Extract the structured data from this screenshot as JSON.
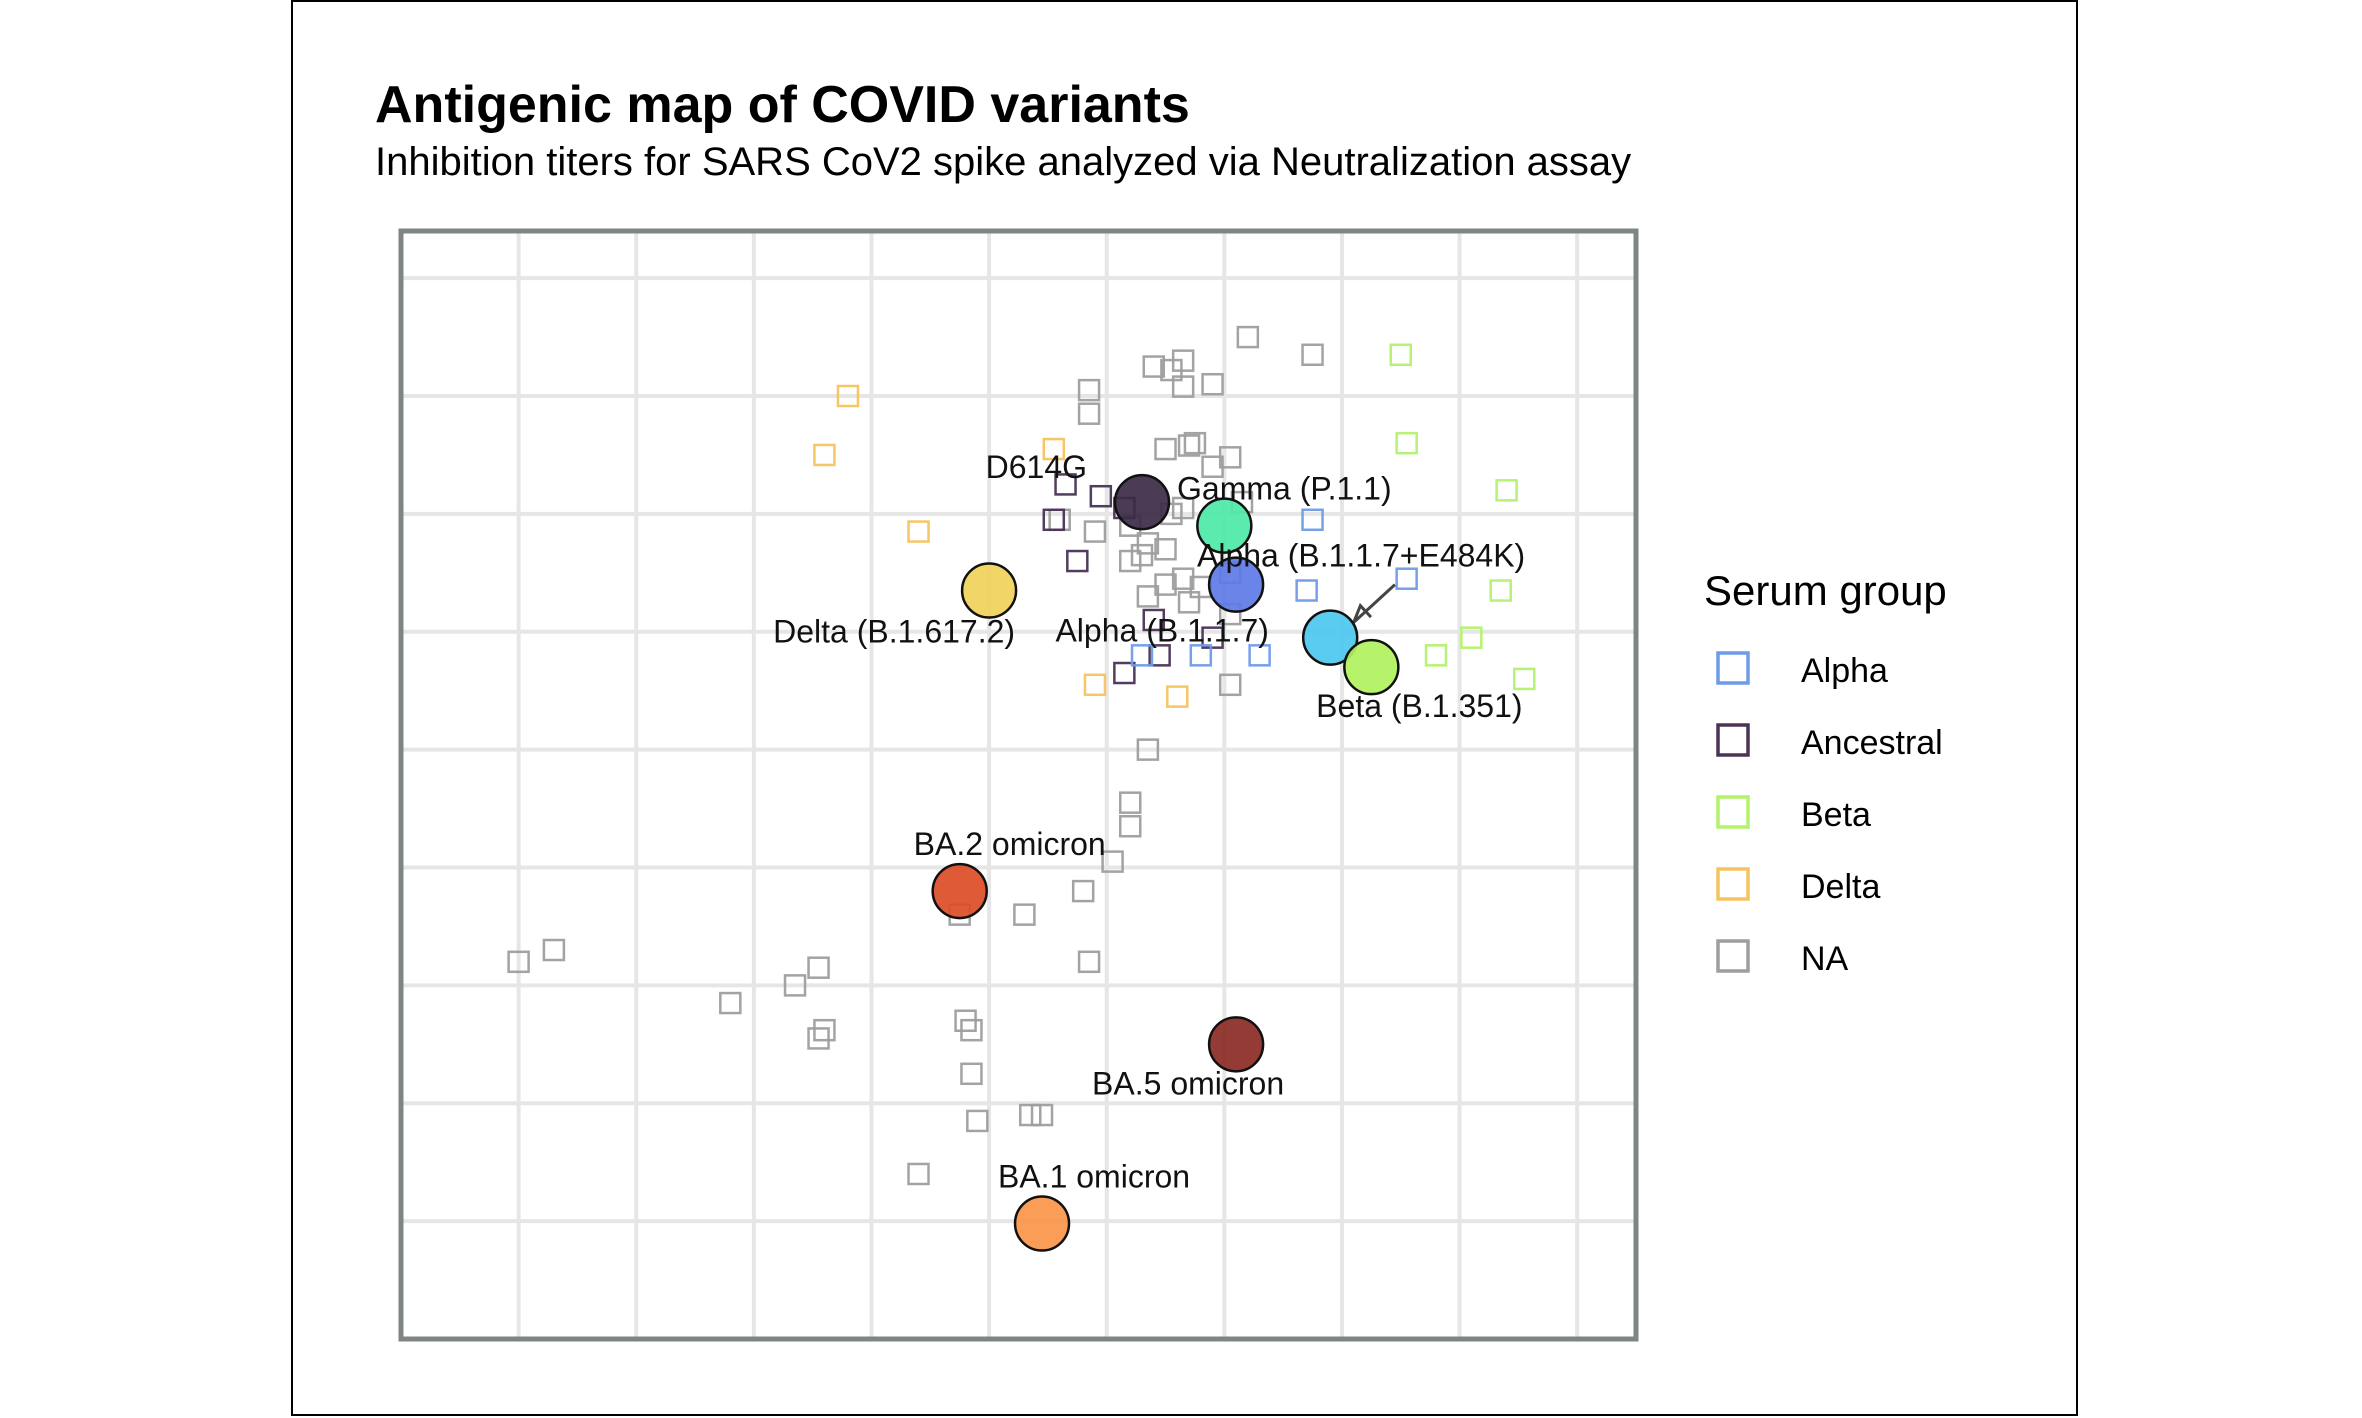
{
  "chart_data": {
    "type": "scatter",
    "title": "Antigenic map of COVID variants",
    "subtitle": "Inhibition titers for SARS CoV2 spike analyzed via Neutralization assay",
    "xlim": [
      0,
      10.5
    ],
    "ylim": [
      0,
      9.4
    ],
    "grid": true,
    "legend": {
      "title": "Serum group",
      "position": "right",
      "entries": [
        {
          "name": "Alpha",
          "color": "#6f9be8"
        },
        {
          "name": "Ancestral",
          "color": "#4a3356"
        },
        {
          "name": "Beta",
          "color": "#b3f26a"
        },
        {
          "name": "Delta",
          "color": "#f5c35f"
        },
        {
          "name": "NA",
          "color": "#9e9e9e"
        }
      ]
    },
    "antigens": [
      {
        "name": "D614G",
        "x": 6.3,
        "y": 7.1,
        "color": "#3c2a47",
        "label_dx": -55,
        "label_dy": -24,
        "anchor": "end"
      },
      {
        "name": "Gamma (P.1.1)",
        "x": 7.0,
        "y": 6.9,
        "color": "#4ee9a7",
        "label_dx": 60,
        "label_dy": -26,
        "anchor": "middle"
      },
      {
        "name": "Alpha (B.1.1.7+E484K)",
        "x": 7.1,
        "y": 6.4,
        "color": "#5e79e6",
        "label_dx": 125,
        "label_dy": -18,
        "anchor": "middle"
      },
      {
        "name": "Delta (B.1.617.2)",
        "x": 5.0,
        "y": 6.35,
        "color": "#f0d35a",
        "label_dx": -95,
        "label_dy": 52,
        "anchor": "middle"
      },
      {
        "name": "Alpha (B.1.1.7)",
        "x": 7.9,
        "y": 5.95,
        "color": "#4cc8ef",
        "label_dx": -168,
        "label_dy": 4,
        "anchor": "middle"
      },
      {
        "name": "Beta (B.1.351)",
        "x": 8.25,
        "y": 5.7,
        "color": "#b1f25d",
        "label_dx": 48,
        "label_dy": 50,
        "anchor": "middle"
      },
      {
        "name": "BA.2 omicron",
        "x": 4.75,
        "y": 3.8,
        "color": "#dc4d27",
        "label_dx": 50,
        "label_dy": -36,
        "anchor": "middle"
      },
      {
        "name": "BA.5 omicron",
        "x": 7.1,
        "y": 2.5,
        "color": "#8b2a24",
        "label_dx": -48,
        "label_dy": 50,
        "anchor": "middle"
      },
      {
        "name": "BA.1 omicron",
        "x": 5.45,
        "y": 0.98,
        "color": "#fa9548",
        "label_dx": 52,
        "label_dy": -36,
        "anchor": "middle"
      }
    ],
    "arrow": {
      "from_x": 8.45,
      "from_y": 6.4,
      "to_x": 8.1,
      "to_y": 6.08
    },
    "sera": [
      {
        "group": "NA",
        "x": 7.2,
        "y": 8.5
      },
      {
        "group": "NA",
        "x": 7.75,
        "y": 8.35
      },
      {
        "group": "NA",
        "x": 6.4,
        "y": 8.25
      },
      {
        "group": "NA",
        "x": 6.65,
        "y": 8.3
      },
      {
        "group": "NA",
        "x": 6.55,
        "y": 8.22
      },
      {
        "group": "NA",
        "x": 6.9,
        "y": 8.1
      },
      {
        "group": "NA",
        "x": 6.65,
        "y": 8.08
      },
      {
        "group": "NA",
        "x": 5.85,
        "y": 8.05
      },
      {
        "group": "NA",
        "x": 5.85,
        "y": 7.85
      },
      {
        "group": "NA",
        "x": 6.5,
        "y": 7.55
      },
      {
        "group": "NA",
        "x": 6.7,
        "y": 7.58
      },
      {
        "group": "NA",
        "x": 6.75,
        "y": 7.6
      },
      {
        "group": "NA",
        "x": 7.05,
        "y": 7.48
      },
      {
        "group": "NA",
        "x": 6.9,
        "y": 7.4
      },
      {
        "group": "NA",
        "x": 7.15,
        "y": 7.1
      },
      {
        "group": "NA",
        "x": 6.55,
        "y": 7.0
      },
      {
        "group": "NA",
        "x": 6.65,
        "y": 7.05
      },
      {
        "group": "NA",
        "x": 6.2,
        "y": 6.9
      },
      {
        "group": "NA",
        "x": 5.6,
        "y": 6.95
      },
      {
        "group": "NA",
        "x": 5.9,
        "y": 6.85
      },
      {
        "group": "NA",
        "x": 6.35,
        "y": 6.75
      },
      {
        "group": "NA",
        "x": 6.5,
        "y": 6.7
      },
      {
        "group": "NA",
        "x": 6.2,
        "y": 6.6
      },
      {
        "group": "NA",
        "x": 6.3,
        "y": 6.65
      },
      {
        "group": "NA",
        "x": 6.5,
        "y": 6.4
      },
      {
        "group": "NA",
        "x": 6.65,
        "y": 6.45
      },
      {
        "group": "NA",
        "x": 6.35,
        "y": 6.3
      },
      {
        "group": "NA",
        "x": 6.7,
        "y": 6.25
      },
      {
        "group": "NA",
        "x": 6.8,
        "y": 6.38
      },
      {
        "group": "NA",
        "x": 7.05,
        "y": 6.15
      },
      {
        "group": "NA",
        "x": 7.05,
        "y": 5.55
      },
      {
        "group": "NA",
        "x": 6.35,
        "y": 5.0
      },
      {
        "group": "NA",
        "x": 6.2,
        "y": 4.55
      },
      {
        "group": "NA",
        "x": 6.2,
        "y": 4.35
      },
      {
        "group": "NA",
        "x": 6.05,
        "y": 4.05
      },
      {
        "group": "NA",
        "x": 5.8,
        "y": 3.8
      },
      {
        "group": "NA",
        "x": 4.75,
        "y": 3.6
      },
      {
        "group": "NA",
        "x": 5.3,
        "y": 3.6
      },
      {
        "group": "NA",
        "x": 5.85,
        "y": 3.2
      },
      {
        "group": "NA",
        "x": 3.55,
        "y": 3.15
      },
      {
        "group": "NA",
        "x": 3.35,
        "y": 3.0
      },
      {
        "group": "NA",
        "x": 2.8,
        "y": 2.85
      },
      {
        "group": "NA",
        "x": 4.8,
        "y": 2.7
      },
      {
        "group": "NA",
        "x": 4.85,
        "y": 2.62
      },
      {
        "group": "NA",
        "x": 3.6,
        "y": 2.62
      },
      {
        "group": "NA",
        "x": 3.55,
        "y": 2.55
      },
      {
        "group": "NA",
        "x": 4.85,
        "y": 2.25
      },
      {
        "group": "NA",
        "x": 4.9,
        "y": 1.85
      },
      {
        "group": "NA",
        "x": 5.35,
        "y": 1.9
      },
      {
        "group": "NA",
        "x": 5.45,
        "y": 1.9
      },
      {
        "group": "NA",
        "x": 4.4,
        "y": 1.4
      },
      {
        "group": "NA",
        "x": 1.0,
        "y": 3.2
      },
      {
        "group": "NA",
        "x": 1.3,
        "y": 3.3
      },
      {
        "group": "Ancestral",
        "x": 5.65,
        "y": 7.25
      },
      {
        "group": "Ancestral",
        "x": 5.95,
        "y": 7.15
      },
      {
        "group": "Ancestral",
        "x": 6.15,
        "y": 7.05
      },
      {
        "group": "Ancestral",
        "x": 5.55,
        "y": 6.95
      },
      {
        "group": "Ancestral",
        "x": 5.75,
        "y": 6.6
      },
      {
        "group": "Ancestral",
        "x": 6.4,
        "y": 6.1
      },
      {
        "group": "Ancestral",
        "x": 6.45,
        "y": 5.8
      },
      {
        "group": "Ancestral",
        "x": 6.15,
        "y": 5.65
      },
      {
        "group": "Ancestral",
        "x": 6.9,
        "y": 5.95
      },
      {
        "group": "Alpha",
        "x": 7.75,
        "y": 6.95
      },
      {
        "group": "Alpha",
        "x": 7.7,
        "y": 6.35
      },
      {
        "group": "Alpha",
        "x": 8.55,
        "y": 6.45
      },
      {
        "group": "Alpha",
        "x": 7.05,
        "y": 6.5
      },
      {
        "group": "Alpha",
        "x": 7.3,
        "y": 5.8
      },
      {
        "group": "Alpha",
        "x": 6.3,
        "y": 5.8
      },
      {
        "group": "Alpha",
        "x": 6.8,
        "y": 5.8
      },
      {
        "group": "Beta",
        "x": 8.5,
        "y": 8.35
      },
      {
        "group": "Beta",
        "x": 8.55,
        "y": 7.6
      },
      {
        "group": "Beta",
        "x": 9.4,
        "y": 7.2
      },
      {
        "group": "Beta",
        "x": 9.35,
        "y": 6.35
      },
      {
        "group": "Beta",
        "x": 9.1,
        "y": 5.95
      },
      {
        "group": "Beta",
        "x": 8.8,
        "y": 5.8
      },
      {
        "group": "Beta",
        "x": 9.55,
        "y": 5.6
      },
      {
        "group": "Delta",
        "x": 3.8,
        "y": 8.0
      },
      {
        "group": "Delta",
        "x": 3.6,
        "y": 7.5
      },
      {
        "group": "Delta",
        "x": 5.55,
        "y": 7.55
      },
      {
        "group": "Delta",
        "x": 4.4,
        "y": 6.85
      },
      {
        "group": "Delta",
        "x": 5.9,
        "y": 5.55
      },
      {
        "group": "Delta",
        "x": 6.6,
        "y": 5.45
      }
    ]
  }
}
